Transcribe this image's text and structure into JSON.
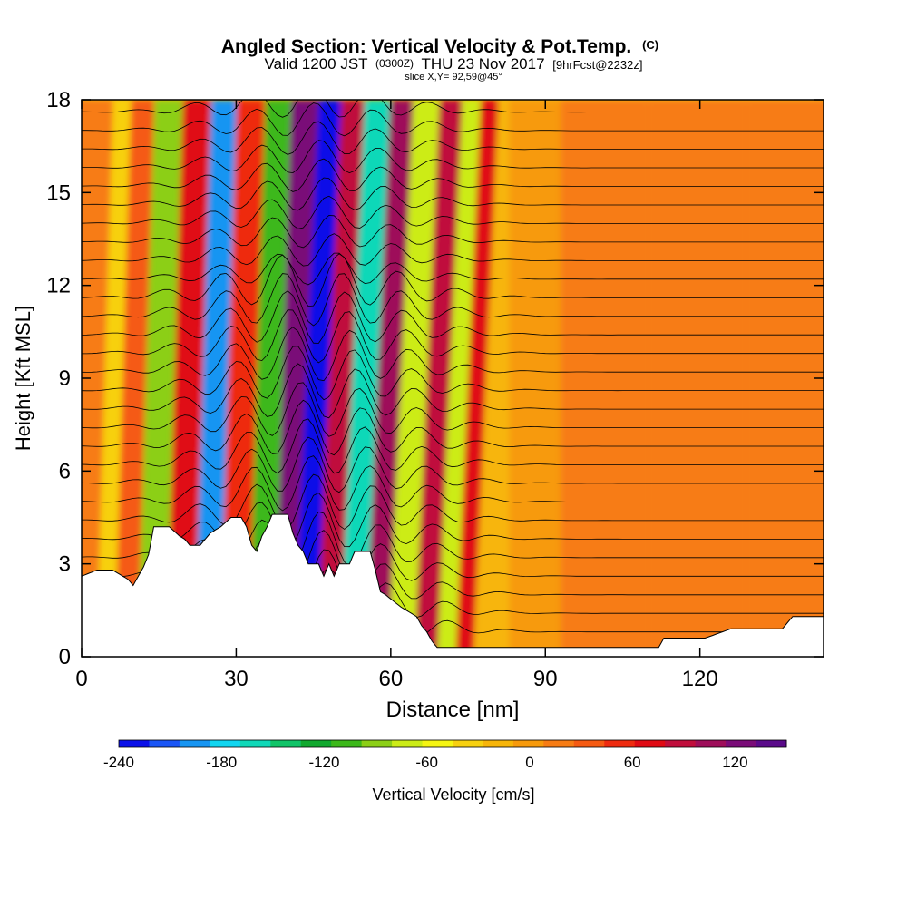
{
  "chart_data": {
    "type": "heatmap",
    "title": "Angled Section: Vertical Velocity & Pot.Temp.",
    "title_unit": "(C)",
    "subtitle_parts": [
      "Valid 1200 JST",
      "(0300Z)",
      "THU 23 Nov 2017",
      "[9hrFcst@2232z]"
    ],
    "slice_text": "slice X,Y= 92,59@45°",
    "xlabel": "Distance [nm]",
    "ylabel": "Height [Kft MSL]",
    "xlim": [
      0,
      144
    ],
    "ylim": [
      0,
      18
    ],
    "x_ticks": [
      0,
      30,
      60,
      90,
      120
    ],
    "y_ticks": [
      0,
      3,
      6,
      9,
      12,
      15,
      18
    ],
    "colorbar": {
      "label": "Vertical Velocity [cm/s]",
      "range": [
        -240,
        150
      ],
      "tick_values": [
        -240,
        -180,
        -120,
        -60,
        0,
        60,
        120
      ],
      "tick_labels": [
        "-240",
        "-180",
        "-120",
        "-60",
        "0",
        "60",
        "120"
      ],
      "colors": [
        "#0a10e8",
        "#1a55f5",
        "#1795f2",
        "#10d5f0",
        "#0fd8b8",
        "#10c468",
        "#10a82e",
        "#3cb81a",
        "#8ccf17",
        "#ccec17",
        "#f5f512",
        "#f7d00f",
        "#f7b509",
        "#f79a0c",
        "#f77c14",
        "#f55a12",
        "#ee2b0f",
        "#e00a14",
        "#c00e3c",
        "#9e0e5a",
        "#7a0c78",
        "#5a0a8a"
      ]
    },
    "terrain_height_kft": [
      [
        0,
        2.6
      ],
      [
        3,
        2.8
      ],
      [
        6,
        2.8
      ],
      [
        9,
        2.5
      ],
      [
        10,
        2.3
      ],
      [
        11,
        2.6
      ],
      [
        12,
        2.9
      ],
      [
        13,
        3.3
      ],
      [
        14,
        4.2
      ],
      [
        17,
        4.2
      ],
      [
        19,
        3.9
      ],
      [
        20,
        3.8
      ],
      [
        21,
        3.6
      ],
      [
        23,
        3.6
      ],
      [
        25,
        4.0
      ],
      [
        27,
        4.2
      ],
      [
        29,
        4.5
      ],
      [
        31,
        4.5
      ],
      [
        32,
        4.2
      ],
      [
        33,
        3.6
      ],
      [
        34,
        3.4
      ],
      [
        35,
        3.9
      ],
      [
        36,
        4.2
      ],
      [
        37,
        4.6
      ],
      [
        40,
        4.6
      ],
      [
        41,
        4.0
      ],
      [
        42,
        3.6
      ],
      [
        43,
        3.4
      ],
      [
        44,
        3.0
      ],
      [
        46,
        3.0
      ],
      [
        47,
        2.6
      ],
      [
        48,
        3.0
      ],
      [
        49,
        2.6
      ],
      [
        50,
        3.0
      ],
      [
        52,
        3.0
      ],
      [
        53,
        3.4
      ],
      [
        56,
        3.4
      ],
      [
        57,
        2.8
      ],
      [
        58,
        2.1
      ],
      [
        59,
        2.0
      ],
      [
        62,
        1.6
      ],
      [
        65,
        1.3
      ],
      [
        66,
        1.0
      ],
      [
        67,
        0.8
      ],
      [
        68,
        0.5
      ],
      [
        69,
        0.3
      ],
      [
        112,
        0.3
      ],
      [
        113,
        0.6
      ],
      [
        121,
        0.6
      ],
      [
        126,
        0.9
      ],
      [
        136,
        0.9
      ],
      [
        138,
        1.3
      ],
      [
        144,
        1.3
      ]
    ],
    "velocity_bands": [
      {
        "x": 3,
        "value": 25
      },
      {
        "x": 6,
        "value": -30
      },
      {
        "x": 10,
        "value": 30
      },
      {
        "x": 15,
        "value": -90
      },
      {
        "x": 21,
        "value": 75
      },
      {
        "x": 26,
        "value": -190
      },
      {
        "x": 31,
        "value": 60
      },
      {
        "x": 37,
        "value": -100
      },
      {
        "x": 41,
        "value": 120
      },
      {
        "x": 46,
        "value": -230
      },
      {
        "x": 50,
        "value": 85
      },
      {
        "x": 55,
        "value": -160
      },
      {
        "x": 60,
        "value": 110
      },
      {
        "x": 64,
        "value": -70
      },
      {
        "x": 70,
        "value": 80
      },
      {
        "x": 73,
        "value": -80
      },
      {
        "x": 77,
        "value": 70
      },
      {
        "x": 80,
        "value": -20
      },
      {
        "x": 86,
        "value": 5
      },
      {
        "x": 100,
        "value": 10
      },
      {
        "x": 120,
        "value": 15
      },
      {
        "x": 138,
        "value": 10
      }
    ],
    "isentropes": {
      "count": 30,
      "start_kft": 0.8,
      "step_kft": 0.6
    }
  }
}
